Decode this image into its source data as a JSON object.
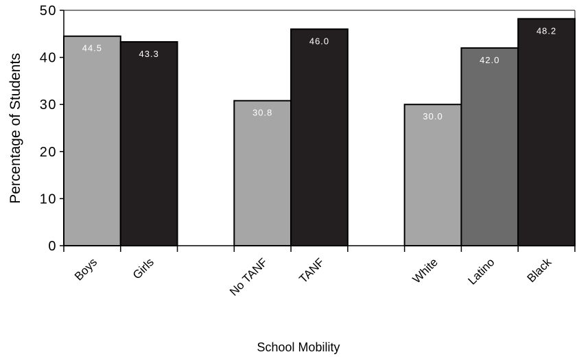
{
  "chart_data": {
    "type": "bar",
    "title": "",
    "xlabel": "School Mobility",
    "ylabel": "Percentage of Students",
    "ylim": [
      0,
      50
    ],
    "yticks": [
      0,
      10,
      20,
      30,
      40,
      50
    ],
    "grid": false,
    "legend": "none",
    "categories": [
      "Boys",
      "Girls",
      "",
      "No TANF",
      "TANF",
      "",
      "White",
      "Latino",
      "Black"
    ],
    "values": [
      44.5,
      43.3,
      null,
      30.8,
      46.0,
      null,
      30.0,
      42.0,
      48.2
    ],
    "value_labels": [
      "44.5",
      "43.3",
      "",
      "30.8",
      "46.0",
      "",
      "30.0",
      "42.0",
      "48.2"
    ],
    "colors": [
      "#a6a6a6",
      "#231f20",
      null,
      "#a6a6a6",
      "#231f20",
      null,
      "#a6a6a6",
      "#6b6b6b",
      "#231f20"
    ]
  }
}
